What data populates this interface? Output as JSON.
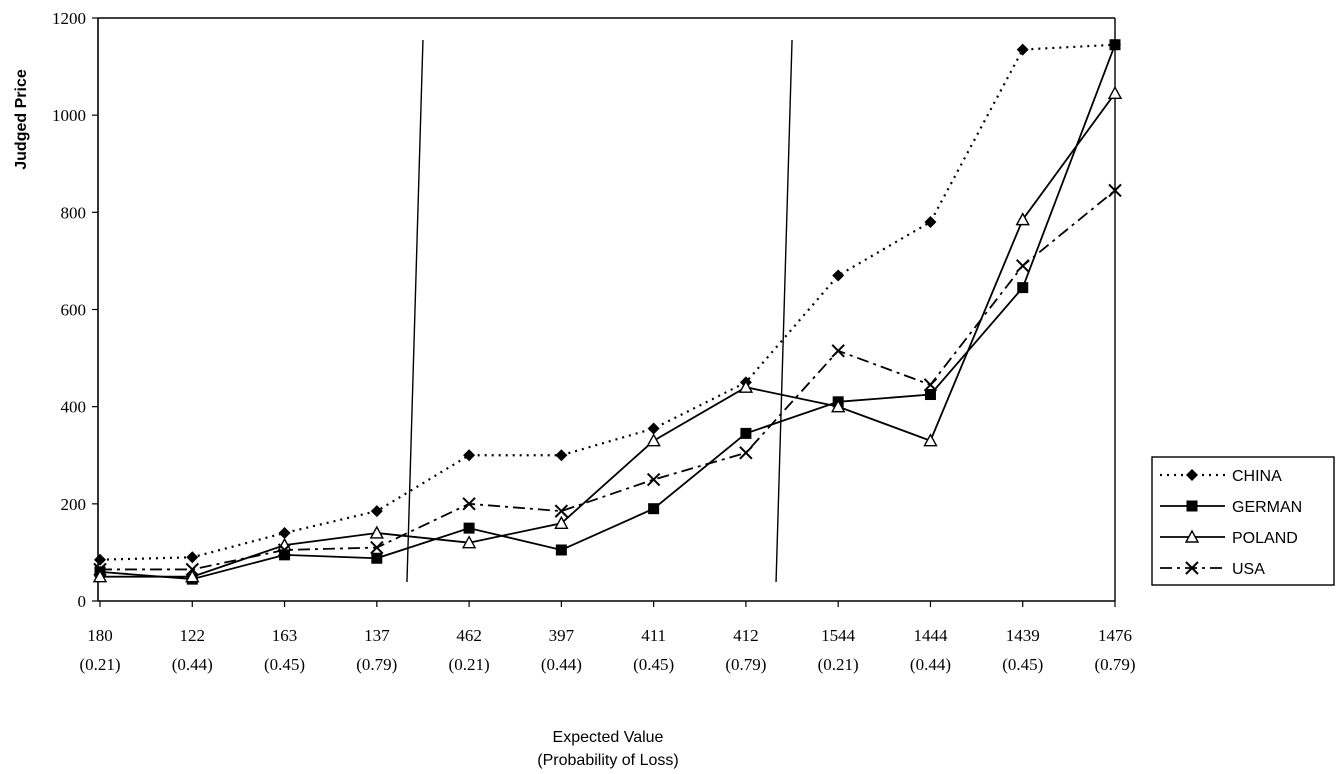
{
  "chart_data": {
    "type": "line",
    "xlabel": [
      "Expected Value",
      "(Probability of Loss)"
    ],
    "ylabel": "Judged Price",
    "ylim": [
      0,
      1200
    ],
    "yticks": [
      0,
      200,
      400,
      600,
      800,
      1000,
      1200
    ],
    "categories": [
      [
        "180",
        "(0.21)"
      ],
      [
        "122",
        "(0.44)"
      ],
      [
        "163",
        "(0.45)"
      ],
      [
        "137",
        "(0.79)"
      ],
      [
        "462",
        "(0.21)"
      ],
      [
        "397",
        "(0.44)"
      ],
      [
        "411",
        "(0.45)"
      ],
      [
        "412",
        "(0.79)"
      ],
      [
        "1544",
        "(0.21)"
      ],
      [
        "1444",
        "(0.44)"
      ],
      [
        "1439",
        "(0.45)"
      ],
      [
        "1476",
        "(0.79)"
      ]
    ],
    "group_dividers_after": [
      3,
      7
    ],
    "legend_position": "right",
    "series": [
      {
        "name": "CHINA",
        "style": "dotted",
        "marker": "diamond",
        "values": [
          85,
          90,
          140,
          185,
          300,
          300,
          355,
          450,
          670,
          780,
          1135,
          1145
        ]
      },
      {
        "name": "GERMAN",
        "style": "solid",
        "marker": "square",
        "values": [
          60,
          45,
          95,
          88,
          150,
          105,
          190,
          345,
          410,
          425,
          645,
          1145
        ]
      },
      {
        "name": "POLAND",
        "style": "solid",
        "marker": "triangle",
        "values": [
          50,
          50,
          115,
          140,
          120,
          160,
          330,
          440,
          400,
          330,
          785,
          1045
        ]
      },
      {
        "name": "USA",
        "style": "dashdot",
        "marker": "x",
        "values": [
          65,
          65,
          105,
          110,
          200,
          185,
          250,
          305,
          515,
          445,
          690,
          845
        ]
      }
    ]
  }
}
